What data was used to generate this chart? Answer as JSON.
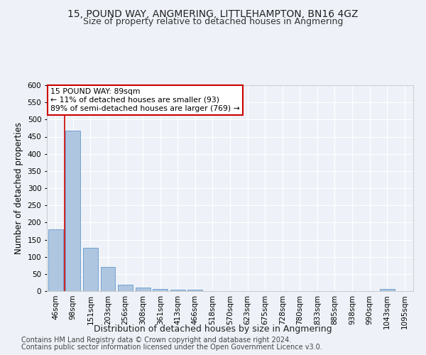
{
  "title1": "15, POUND WAY, ANGMERING, LITTLEHAMPTON, BN16 4GZ",
  "title2": "Size of property relative to detached houses in Angmering",
  "xlabel": "Distribution of detached houses by size in Angmering",
  "ylabel": "Number of detached properties",
  "categories": [
    "46sqm",
    "98sqm",
    "151sqm",
    "203sqm",
    "256sqm",
    "308sqm",
    "361sqm",
    "413sqm",
    "466sqm",
    "518sqm",
    "570sqm",
    "623sqm",
    "675sqm",
    "728sqm",
    "780sqm",
    "833sqm",
    "885sqm",
    "938sqm",
    "990sqm",
    "1043sqm",
    "1095sqm"
  ],
  "values": [
    180,
    468,
    127,
    70,
    18,
    11,
    7,
    5,
    5,
    0,
    0,
    0,
    0,
    0,
    0,
    0,
    0,
    0,
    0,
    6,
    0
  ],
  "bar_color": "#aec6e0",
  "bar_edge_color": "#6699cc",
  "background_color": "#eef2f8",
  "grid_color": "#ffffff",
  "annotation_line1": "15 POUND WAY: 89sqm",
  "annotation_line2": "← 11% of detached houses are smaller (93)",
  "annotation_line3": "89% of semi-detached houses are larger (769) →",
  "annotation_box_color": "#ffffff",
  "annotation_box_edge_color": "#cc0000",
  "vline_color": "#cc0000",
  "ylim": [
    0,
    600
  ],
  "yticks": [
    0,
    50,
    100,
    150,
    200,
    250,
    300,
    350,
    400,
    450,
    500,
    550,
    600
  ],
  "footer1": "Contains HM Land Registry data © Crown copyright and database right 2024.",
  "footer2": "Contains public sector information licensed under the Open Government Licence v3.0.",
  "title1_fontsize": 10,
  "title2_fontsize": 9,
  "xlabel_fontsize": 9,
  "ylabel_fontsize": 8.5,
  "tick_fontsize": 7.5,
  "footer_fontsize": 7
}
